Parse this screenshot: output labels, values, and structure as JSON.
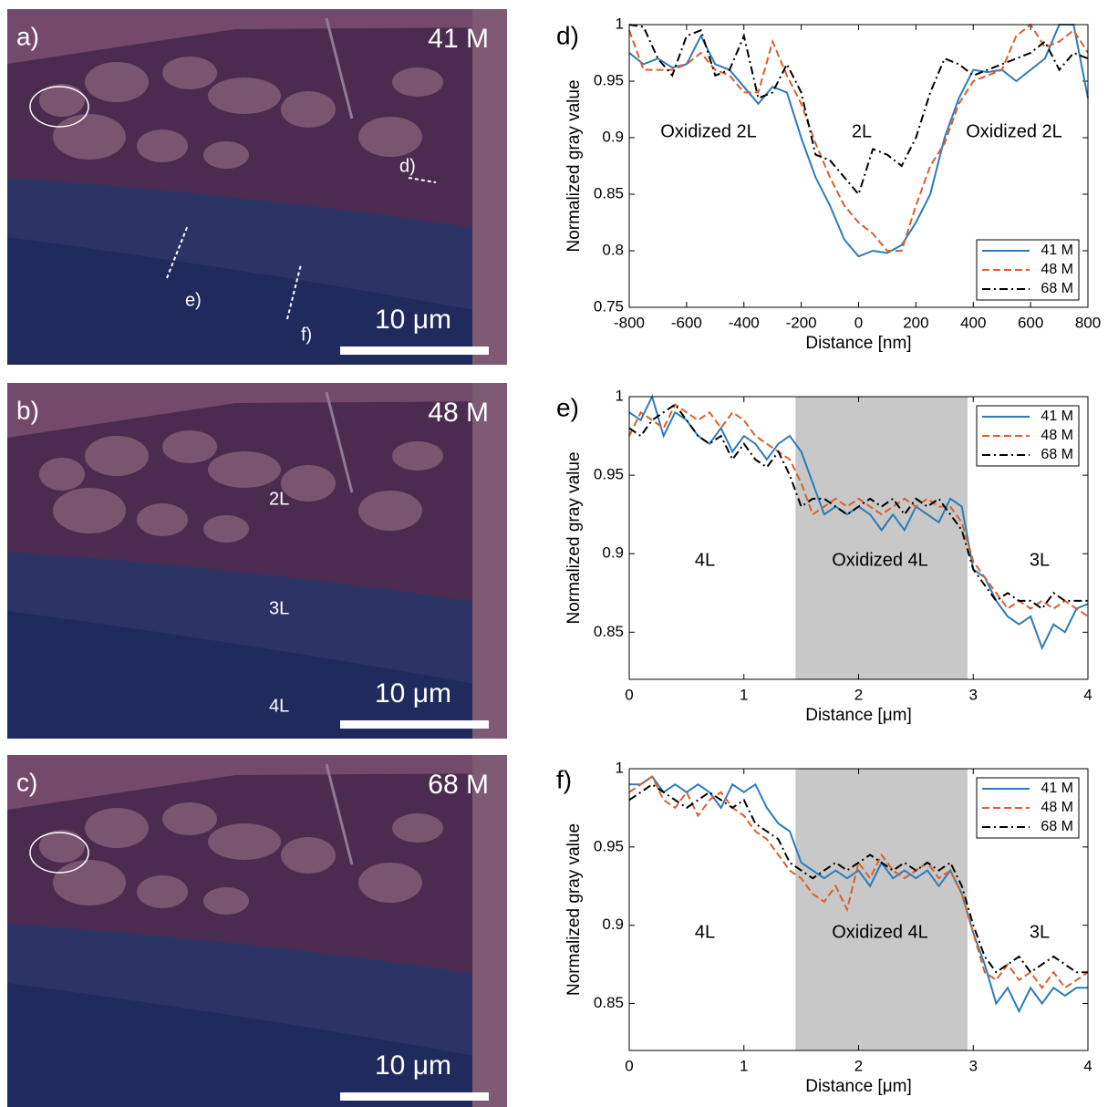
{
  "images": [
    {
      "label": "a)",
      "magnification": "41 M",
      "scale_bar": "10 μm",
      "annotations": [
        "d)",
        "e)",
        "f)"
      ]
    },
    {
      "label": "b)",
      "magnification": "48 M",
      "scale_bar": "10 μm",
      "annotations": [
        "2L",
        "3L",
        "4L"
      ]
    },
    {
      "label": "c)",
      "magnification": "68 M",
      "scale_bar": "10 μm",
      "annotations": []
    }
  ],
  "chart_data": [
    {
      "type": "line",
      "label": "d)",
      "xlabel": "Distance [nm]",
      "ylabel": "Normalized gray value",
      "xlim": [
        -800,
        800
      ],
      "xticks": [
        -800,
        -600,
        -400,
        -200,
        0,
        200,
        400,
        600,
        800
      ],
      "ylim": [
        0.75,
        1
      ],
      "yticks": [
        0.75,
        0.8,
        0.85,
        0.9,
        0.95,
        1
      ],
      "legend": "lower right",
      "annotations": [
        "Oxidized 2L",
        "2L",
        "Oxidized 2L"
      ],
      "x": [
        -800,
        -750,
        -700,
        -650,
        -600,
        -550,
        -500,
        -450,
        -400,
        -350,
        -300,
        -250,
        -200,
        -150,
        -100,
        -50,
        0,
        50,
        100,
        150,
        200,
        250,
        300,
        350,
        400,
        450,
        500,
        550,
        600,
        650,
        700,
        750,
        800
      ],
      "series": [
        {
          "name": "41 M",
          "color": "#2b7bba",
          "dash": "solid",
          "values": [
            0.975,
            0.965,
            0.97,
            0.962,
            0.965,
            0.99,
            0.965,
            0.96,
            0.945,
            0.93,
            0.945,
            0.94,
            0.9,
            0.865,
            0.84,
            0.81,
            0.795,
            0.8,
            0.798,
            0.805,
            0.825,
            0.85,
            0.9,
            0.935,
            0.96,
            0.958,
            0.96,
            0.95,
            0.96,
            0.97,
            1,
            1,
            0.935
          ]
        },
        {
          "name": "48 M",
          "color": "#d95f2b",
          "dash": "dashed",
          "values": [
            0.995,
            0.96,
            0.96,
            0.96,
            0.965,
            0.975,
            0.96,
            0.955,
            0.94,
            0.94,
            0.985,
            0.955,
            0.93,
            0.895,
            0.865,
            0.84,
            0.825,
            0.815,
            0.8,
            0.8,
            0.84,
            0.875,
            0.895,
            0.93,
            0.95,
            0.955,
            0.96,
            0.99,
            1,
            0.98,
            0.985,
            0.995,
            0.975
          ]
        },
        {
          "name": "68 M",
          "color": "#000000",
          "dash": "dashdot",
          "values": [
            1,
            0.998,
            0.97,
            0.955,
            0.99,
            0.995,
            0.955,
            0.96,
            0.99,
            0.935,
            0.94,
            0.965,
            0.94,
            0.885,
            0.88,
            0.865,
            0.85,
            0.89,
            0.885,
            0.875,
            0.9,
            0.94,
            0.97,
            0.965,
            0.955,
            0.96,
            0.965,
            0.97,
            0.975,
            0.985,
            0.96,
            0.975,
            0.97
          ]
        }
      ]
    },
    {
      "type": "line",
      "label": "e)",
      "xlabel": "Distance [μm]",
      "ylabel": "Normalized gray value",
      "xlim": [
        0,
        4
      ],
      "xticks": [
        0,
        1,
        2,
        3,
        4
      ],
      "ylim": [
        0.82,
        1
      ],
      "yticks": [
        0.85,
        0.9,
        0.95,
        1
      ],
      "legend": "upper right",
      "shaded_region": [
        1.45,
        2.95
      ],
      "annotations": [
        "4L",
        "Oxidized 4L",
        "3L"
      ],
      "x": [
        0,
        0.1,
        0.2,
        0.3,
        0.4,
        0.5,
        0.6,
        0.7,
        0.8,
        0.9,
        1,
        1.1,
        1.2,
        1.3,
        1.4,
        1.5,
        1.6,
        1.7,
        1.8,
        1.9,
        2,
        2.1,
        2.2,
        2.3,
        2.4,
        2.5,
        2.6,
        2.7,
        2.8,
        2.9,
        3,
        3.1,
        3.2,
        3.3,
        3.4,
        3.5,
        3.6,
        3.7,
        3.8,
        3.9,
        4
      ],
      "series": [
        {
          "name": "41 M",
          "color": "#2b7bba",
          "dash": "solid",
          "values": [
            0.99,
            0.985,
            1,
            0.975,
            0.99,
            0.985,
            0.975,
            0.97,
            0.98,
            0.965,
            0.975,
            0.97,
            0.96,
            0.97,
            0.975,
            0.965,
            0.945,
            0.925,
            0.93,
            0.925,
            0.93,
            0.925,
            0.915,
            0.925,
            0.915,
            0.93,
            0.925,
            0.92,
            0.935,
            0.93,
            0.89,
            0.885,
            0.87,
            0.86,
            0.855,
            0.86,
            0.84,
            0.855,
            0.85,
            0.865,
            0.868
          ]
        },
        {
          "name": "48 M",
          "color": "#d95f2b",
          "dash": "dashed",
          "values": [
            0.975,
            0.99,
            0.985,
            0.98,
            0.995,
            0.99,
            0.985,
            0.99,
            0.98,
            0.99,
            0.985,
            0.975,
            0.97,
            0.965,
            0.96,
            0.945,
            0.925,
            0.93,
            0.935,
            0.93,
            0.935,
            0.93,
            0.925,
            0.93,
            0.935,
            0.93,
            0.935,
            0.93,
            0.93,
            0.92,
            0.895,
            0.885,
            0.875,
            0.865,
            0.87,
            0.865,
            0.87,
            0.865,
            0.87,
            0.865,
            0.86
          ]
        },
        {
          "name": "68 M",
          "color": "#000000",
          "dash": "dashdot",
          "values": [
            0.98,
            0.975,
            0.985,
            0.99,
            0.995,
            0.985,
            0.975,
            0.97,
            0.975,
            0.96,
            0.97,
            0.96,
            0.955,
            0.965,
            0.95,
            0.93,
            0.935,
            0.935,
            0.93,
            0.925,
            0.93,
            0.935,
            0.93,
            0.935,
            0.925,
            0.935,
            0.93,
            0.935,
            0.925,
            0.915,
            0.89,
            0.88,
            0.87,
            0.875,
            0.87,
            0.87,
            0.865,
            0.875,
            0.87,
            0.87,
            0.87
          ]
        }
      ]
    },
    {
      "type": "line",
      "label": "f)",
      "xlabel": "Distance [μm]",
      "ylabel": "Normalized gray value",
      "xlim": [
        0,
        4
      ],
      "xticks": [
        0,
        1,
        2,
        3,
        4
      ],
      "ylim": [
        0.82,
        1
      ],
      "yticks": [
        0.85,
        0.9,
        0.95,
        1
      ],
      "legend": "upper right",
      "shaded_region": [
        1.45,
        2.95
      ],
      "annotations": [
        "4L",
        "Oxidized 4L",
        "3L"
      ],
      "x": [
        0,
        0.1,
        0.2,
        0.3,
        0.4,
        0.5,
        0.6,
        0.7,
        0.8,
        0.9,
        1,
        1.1,
        1.2,
        1.3,
        1.4,
        1.5,
        1.6,
        1.7,
        1.8,
        1.9,
        2,
        2.1,
        2.2,
        2.3,
        2.4,
        2.5,
        2.6,
        2.7,
        2.8,
        2.9,
        3,
        3.1,
        3.2,
        3.3,
        3.4,
        3.5,
        3.6,
        3.7,
        3.8,
        3.9,
        4
      ],
      "series": [
        {
          "name": "41 M",
          "color": "#2b7bba",
          "dash": "solid",
          "values": [
            0.99,
            0.99,
            0.995,
            0.985,
            0.99,
            0.985,
            0.99,
            0.985,
            0.975,
            0.99,
            0.985,
            0.99,
            0.975,
            0.965,
            0.96,
            0.94,
            0.935,
            0.93,
            0.935,
            0.93,
            0.935,
            0.925,
            0.94,
            0.93,
            0.935,
            0.93,
            0.935,
            0.925,
            0.935,
            0.92,
            0.895,
            0.875,
            0.85,
            0.86,
            0.845,
            0.86,
            0.85,
            0.86,
            0.855,
            0.86,
            0.86
          ]
        },
        {
          "name": "48 M",
          "color": "#d95f2b",
          "dash": "dashed",
          "values": [
            0.985,
            0.99,
            0.995,
            0.98,
            0.975,
            0.985,
            0.97,
            0.98,
            0.985,
            0.975,
            0.97,
            0.96,
            0.955,
            0.945,
            0.935,
            0.93,
            0.92,
            0.915,
            0.925,
            0.91,
            0.94,
            0.93,
            0.945,
            0.935,
            0.93,
            0.935,
            0.94,
            0.93,
            0.935,
            0.92,
            0.895,
            0.87,
            0.865,
            0.875,
            0.865,
            0.87,
            0.86,
            0.87,
            0.86,
            0.865,
            0.87
          ]
        },
        {
          "name": "68 M",
          "color": "#000000",
          "dash": "dashdot",
          "values": [
            0.98,
            0.985,
            0.99,
            0.985,
            0.98,
            0.975,
            0.98,
            0.985,
            0.98,
            0.975,
            0.98,
            0.965,
            0.96,
            0.955,
            0.94,
            0.935,
            0.93,
            0.935,
            0.94,
            0.935,
            0.94,
            0.945,
            0.94,
            0.935,
            0.94,
            0.935,
            0.94,
            0.935,
            0.94,
            0.925,
            0.9,
            0.88,
            0.87,
            0.875,
            0.88,
            0.87,
            0.875,
            0.88,
            0.875,
            0.87,
            0.87
          ]
        }
      ]
    }
  ]
}
